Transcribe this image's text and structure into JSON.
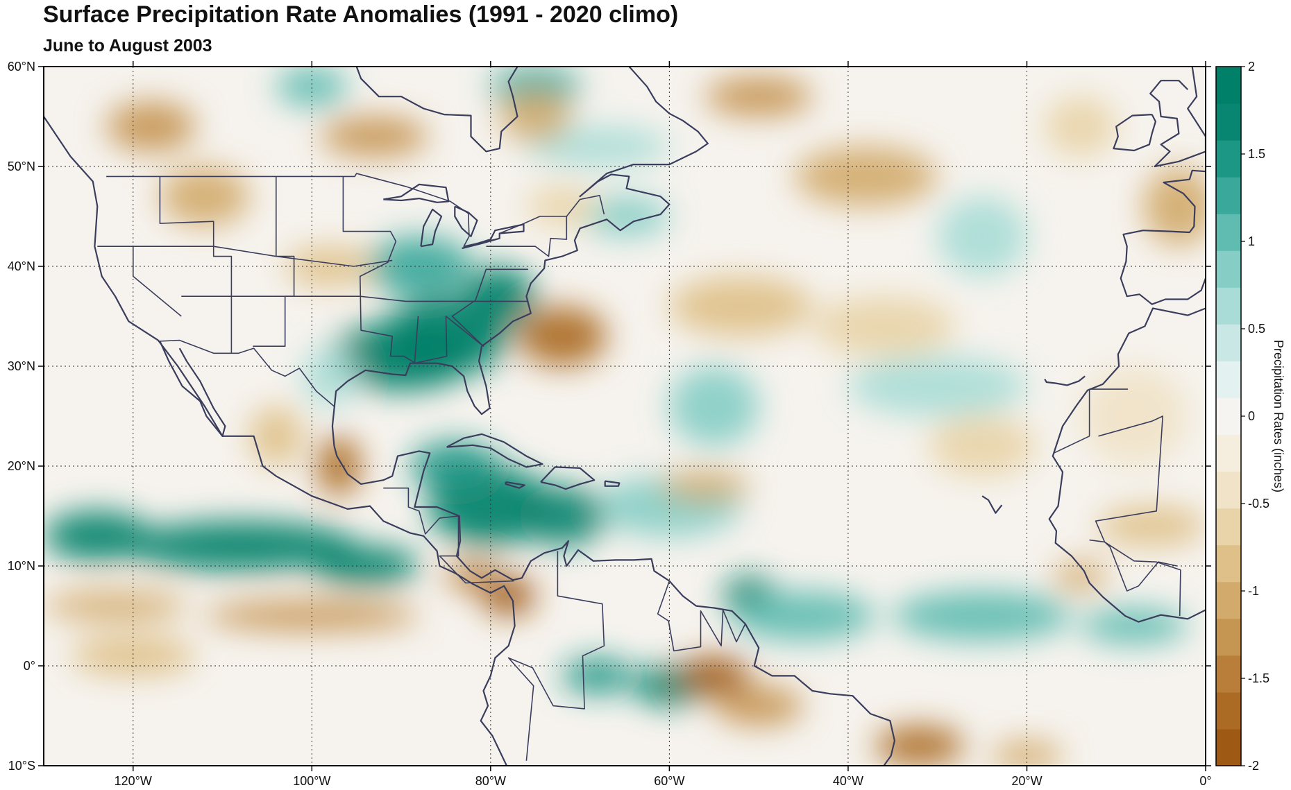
{
  "title": "Surface Precipitation Rate Anomalies (1991 - 2020 climo)",
  "subtitle": "June to August 2003",
  "map": {
    "projection": "equirectangular",
    "lon_range": [
      -130,
      0
    ],
    "lat_range": [
      -10,
      60
    ],
    "grid": "dotted",
    "x_ticks": [
      {
        "lon": -120,
        "label": "120°W"
      },
      {
        "lon": -100,
        "label": "100°W"
      },
      {
        "lon": -80,
        "label": "80°W"
      },
      {
        "lon": -60,
        "label": "60°W"
      },
      {
        "lon": -40,
        "label": "40°W"
      },
      {
        "lon": -20,
        "label": "20°W"
      },
      {
        "lon": 0,
        "label": "0°"
      }
    ],
    "y_ticks": [
      {
        "lat": 60,
        "label": "60°N"
      },
      {
        "lat": 50,
        "label": "50°N"
      },
      {
        "lat": 40,
        "label": "40°N"
      },
      {
        "lat": 30,
        "label": "30°N"
      },
      {
        "lat": 20,
        "label": "20°N"
      },
      {
        "lat": 10,
        "label": "10°N"
      },
      {
        "lat": 0,
        "label": "0°"
      },
      {
        "lat": -10,
        "label": "10°S"
      }
    ],
    "coastline_color": "#3a3d5c",
    "anomaly_regions": [
      {
        "lon": -90,
        "lat": 31,
        "value": 2.0,
        "rx": 8,
        "ry": 3.5
      },
      {
        "lon": -85,
        "lat": 33,
        "value": 1.8,
        "rx": 7,
        "ry": 4
      },
      {
        "lon": -79,
        "lat": 37,
        "value": 1.8,
        "rx": 4,
        "ry": 3
      },
      {
        "lon": -88,
        "lat": 40,
        "value": 1.2,
        "rx": 6,
        "ry": 3
      },
      {
        "lon": -80,
        "lat": 16,
        "value": 2.0,
        "rx": 7,
        "ry": 4
      },
      {
        "lon": -72,
        "lat": 15,
        "value": 1.6,
        "rx": 5,
        "ry": 3
      },
      {
        "lon": -84,
        "lat": 20,
        "value": 1.4,
        "rx": 5,
        "ry": 2.5
      },
      {
        "lon": -124,
        "lat": 13,
        "value": 2.0,
        "rx": 6,
        "ry": 2.5
      },
      {
        "lon": -108,
        "lat": 12,
        "value": 2.0,
        "rx": 13,
        "ry": 2.5
      },
      {
        "lon": -94,
        "lat": 10,
        "value": 1.8,
        "rx": 6,
        "ry": 2
      },
      {
        "lon": -60,
        "lat": -2,
        "value": 2.0,
        "rx": 4,
        "ry": 2
      },
      {
        "lon": -68,
        "lat": -1,
        "value": 1.4,
        "rx": 4,
        "ry": 1.8
      },
      {
        "lon": -51,
        "lat": 7,
        "value": 1.8,
        "rx": 3,
        "ry": 2
      },
      {
        "lon": -45,
        "lat": 5,
        "value": 1.0,
        "rx": 8,
        "ry": 2.5
      },
      {
        "lon": -25,
        "lat": 5,
        "value": 1.0,
        "rx": 10,
        "ry": 2.5
      },
      {
        "lon": -8,
        "lat": 4,
        "value": 1.1,
        "rx": 6,
        "ry": 1.8
      },
      {
        "lon": -60,
        "lat": 16,
        "value": 0.8,
        "rx": 8,
        "ry": 3
      },
      {
        "lon": -75,
        "lat": 58,
        "value": 1.2,
        "rx": 5,
        "ry": 2
      },
      {
        "lon": -100,
        "lat": 58,
        "value": 1.0,
        "rx": 4,
        "ry": 2
      },
      {
        "lon": -68,
        "lat": 52,
        "value": 0.6,
        "rx": 8,
        "ry": 2
      },
      {
        "lon": -65,
        "lat": 45,
        "value": 0.8,
        "rx": 5,
        "ry": 2
      },
      {
        "lon": -30,
        "lat": 28,
        "value": 0.6,
        "rx": 10,
        "ry": 3
      },
      {
        "lon": -55,
        "lat": 26,
        "value": 0.8,
        "rx": 5,
        "ry": 4
      },
      {
        "lon": -25,
        "lat": 43,
        "value": 0.6,
        "rx": 5,
        "ry": 4
      },
      {
        "lon": -98,
        "lat": 29,
        "value": 0.6,
        "rx": 3,
        "ry": 3
      },
      {
        "lon": -72,
        "lat": 33,
        "value": -1.6,
        "rx": 5,
        "ry": 3
      },
      {
        "lon": -97,
        "lat": 20,
        "value": -1.6,
        "rx": 2.5,
        "ry": 3
      },
      {
        "lon": -78,
        "lat": 7,
        "value": -2.0,
        "rx": 3,
        "ry": 2
      },
      {
        "lon": -82,
        "lat": 9,
        "value": -1.4,
        "rx": 3,
        "ry": 1.5
      },
      {
        "lon": -100,
        "lat": 5,
        "value": -1.2,
        "rx": 12,
        "ry": 1.5
      },
      {
        "lon": -122,
        "lat": 6,
        "value": -1.0,
        "rx": 8,
        "ry": 1.5
      },
      {
        "lon": -55,
        "lat": -1,
        "value": -1.8,
        "rx": 4,
        "ry": 2
      },
      {
        "lon": -50,
        "lat": -4,
        "value": -1.2,
        "rx": 5,
        "ry": 2
      },
      {
        "lon": -32,
        "lat": -8,
        "value": -1.6,
        "rx": 5,
        "ry": 2
      },
      {
        "lon": -20,
        "lat": -9,
        "value": -1.0,
        "rx": 4,
        "ry": 1.5
      },
      {
        "lon": -118,
        "lat": 54,
        "value": -1.2,
        "rx": 5,
        "ry": 2.5
      },
      {
        "lon": -93,
        "lat": 53,
        "value": -1.2,
        "rx": 6,
        "ry": 2
      },
      {
        "lon": -75,
        "lat": 55,
        "value": -1.0,
        "rx": 4,
        "ry": 2.5
      },
      {
        "lon": -112,
        "lat": 47,
        "value": -1.0,
        "rx": 5,
        "ry": 3
      },
      {
        "lon": -98,
        "lat": 40,
        "value": -0.8,
        "rx": 5,
        "ry": 2
      },
      {
        "lon": -50,
        "lat": 57,
        "value": -1.2,
        "rx": 6,
        "ry": 2
      },
      {
        "lon": -38,
        "lat": 49,
        "value": -1.0,
        "rx": 8,
        "ry": 3
      },
      {
        "lon": -52,
        "lat": 36,
        "value": -0.8,
        "rx": 8,
        "ry": 3
      },
      {
        "lon": -36,
        "lat": 34,
        "value": -0.6,
        "rx": 8,
        "ry": 3
      },
      {
        "lon": -56,
        "lat": 18,
        "value": -1.0,
        "rx": 5,
        "ry": 1.5
      },
      {
        "lon": -3,
        "lat": 46,
        "value": -1.0,
        "rx": 4,
        "ry": 4
      },
      {
        "lon": -14,
        "lat": 54,
        "value": -0.6,
        "rx": 4,
        "ry": 3
      },
      {
        "lon": -6,
        "lat": 14,
        "value": -0.8,
        "rx": 6,
        "ry": 2
      },
      {
        "lon": -14,
        "lat": 9,
        "value": -1.0,
        "rx": 3,
        "ry": 1.5
      },
      {
        "lon": -104,
        "lat": 23,
        "value": -0.8,
        "rx": 3,
        "ry": 3
      },
      {
        "lon": -72,
        "lat": 46,
        "value": -0.6,
        "rx": 4,
        "ry": 2
      },
      {
        "lon": -25,
        "lat": 22,
        "value": -0.6,
        "rx": 6,
        "ry": 3
      },
      {
        "lon": -120,
        "lat": 1,
        "value": -0.8,
        "rx": 7,
        "ry": 2
      },
      {
        "lon": -8,
        "lat": 25,
        "value": -0.5,
        "rx": 6,
        "ry": 5
      }
    ]
  },
  "colorbar": {
    "label": "Precipitation Rates (inches)",
    "min": -2,
    "max": 2,
    "ticks": [
      {
        "value": 2,
        "label": "2"
      },
      {
        "value": 1.5,
        "label": "1.5"
      },
      {
        "value": 1,
        "label": "1"
      },
      {
        "value": 0.5,
        "label": "0.5"
      },
      {
        "value": 0,
        "label": "0"
      },
      {
        "value": -0.5,
        "label": "-0.5"
      },
      {
        "value": -1,
        "label": "-1"
      },
      {
        "value": -1.5,
        "label": "-1.5"
      },
      {
        "value": -2,
        "label": "-2"
      }
    ],
    "palette": [
      "#9e5a14",
      "#ab6b24",
      "#b87e3a",
      "#c59552",
      "#d2ab6c",
      "#dec088",
      "#e8d4a8",
      "#f0e3c8",
      "#f5eedf",
      "#f6f4f0",
      "#e3f2f1",
      "#c9e8e5",
      "#a9dcd6",
      "#86cec5",
      "#60bcb1",
      "#3aa89b",
      "#1c9685",
      "#088672",
      "#008068"
    ]
  }
}
